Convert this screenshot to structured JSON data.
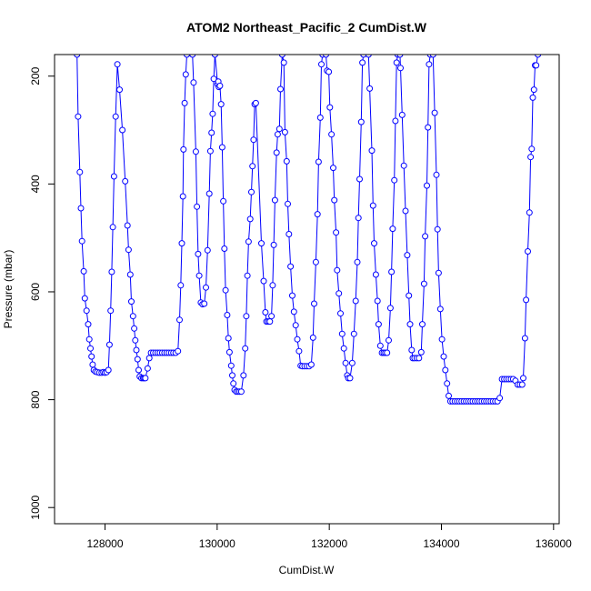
{
  "chart_data": {
    "type": "scatter",
    "title": "ATOM2 Northeast_Pacific_2 CumDist.W",
    "xlabel": "CumDist.W",
    "ylabel": "Pressure (mbar)",
    "xlim": [
      127100,
      136100
    ],
    "ylim": [
      1030,
      160
    ],
    "y_reversed": true,
    "grid": false,
    "legend": "none",
    "x_ticks": [
      128000,
      130000,
      132000,
      134000,
      136000
    ],
    "x_tick_labels": [
      "128000",
      "130000",
      "132000",
      "134000",
      "136000"
    ],
    "y_ticks": [
      200,
      400,
      600,
      800,
      1000
    ],
    "y_tick_labels": [
      "200",
      "400",
      "600",
      "800",
      "1000"
    ],
    "colors": {
      "series": "#0000ff",
      "axes": "#000000",
      "background": "#ffffff"
    },
    "series": [
      {
        "values": [
          [
            127500,
            160
          ],
          [
            127520,
            275
          ],
          [
            127550,
            378
          ],
          [
            127570,
            445
          ],
          [
            127590,
            506
          ],
          [
            127620,
            562
          ],
          [
            127640,
            612
          ],
          [
            127670,
            635
          ],
          [
            127700,
            660
          ],
          [
            127720,
            688
          ],
          [
            127740,
            705
          ],
          [
            127760,
            720
          ],
          [
            127780,
            735
          ],
          [
            127800,
            745
          ],
          [
            127830,
            748
          ],
          [
            127860,
            749
          ],
          [
            127900,
            750
          ],
          [
            127940,
            750
          ],
          [
            127970,
            749
          ],
          [
            128000,
            750
          ],
          [
            128030,
            749
          ],
          [
            128060,
            745
          ],
          [
            128080,
            698
          ],
          [
            128100,
            635
          ],
          [
            128120,
            563
          ],
          [
            128140,
            480
          ],
          [
            128160,
            386
          ],
          [
            128190,
            275
          ],
          [
            128220,
            178
          ],
          [
            128260,
            225
          ],
          [
            128310,
            300
          ],
          [
            128360,
            395
          ],
          [
            128400,
            477
          ],
          [
            128420,
            522
          ],
          [
            128450,
            568
          ],
          [
            128470,
            618
          ],
          [
            128500,
            645
          ],
          [
            128520,
            668
          ],
          [
            128540,
            690
          ],
          [
            128560,
            708
          ],
          [
            128580,
            725
          ],
          [
            128600,
            745
          ],
          [
            128620,
            757
          ],
          [
            128650,
            760
          ],
          [
            128680,
            760
          ],
          [
            128700,
            760
          ],
          [
            128720,
            760
          ],
          [
            128760,
            742
          ],
          [
            128790,
            723
          ],
          [
            128820,
            713
          ],
          [
            128860,
            713
          ],
          [
            128900,
            713
          ],
          [
            128940,
            713
          ],
          [
            128980,
            713
          ],
          [
            129020,
            713
          ],
          [
            129060,
            713
          ],
          [
            129100,
            713
          ],
          [
            129140,
            713
          ],
          [
            129180,
            713
          ],
          [
            129220,
            713
          ],
          [
            129260,
            713
          ],
          [
            129300,
            710
          ],
          [
            129330,
            652
          ],
          [
            129350,
            588
          ],
          [
            129370,
            510
          ],
          [
            129390,
            423
          ],
          [
            129400,
            336
          ],
          [
            129420,
            250
          ],
          [
            129440,
            197
          ],
          [
            129460,
            160
          ],
          [
            129560,
            160
          ],
          [
            129580,
            212
          ],
          [
            129620,
            340
          ],
          [
            129640,
            442
          ],
          [
            129660,
            530
          ],
          [
            129680,
            570
          ],
          [
            129710,
            620
          ],
          [
            129740,
            623
          ],
          [
            129770,
            622
          ],
          [
            129800,
            592
          ],
          [
            129830,
            523
          ],
          [
            129860,
            418
          ],
          [
            129880,
            339
          ],
          [
            129900,
            305
          ],
          [
            129920,
            270
          ],
          [
            129940,
            205
          ],
          [
            129960,
            160
          ],
          [
            130010,
            215
          ],
          [
            130020,
            210
          ],
          [
            130030,
            220
          ],
          [
            130050,
            218
          ],
          [
            130070,
            252
          ],
          [
            130090,
            332
          ],
          [
            130110,
            432
          ],
          [
            130130,
            520
          ],
          [
            130150,
            597
          ],
          [
            130180,
            643
          ],
          [
            130200,
            686
          ],
          [
            130220,
            712
          ],
          [
            130250,
            737
          ],
          [
            130270,
            755
          ],
          [
            130290,
            770
          ],
          [
            130310,
            782
          ],
          [
            130340,
            785
          ],
          [
            130370,
            785
          ],
          [
            130400,
            785
          ],
          [
            130430,
            785
          ],
          [
            130470,
            755
          ],
          [
            130500,
            705
          ],
          [
            130520,
            645
          ],
          [
            130540,
            570
          ],
          [
            130560,
            507
          ],
          [
            130590,
            465
          ],
          [
            130610,
            415
          ],
          [
            130630,
            367
          ],
          [
            130650,
            318
          ],
          [
            130670,
            252
          ],
          [
            130690,
            250
          ],
          [
            130790,
            510
          ],
          [
            130830,
            580
          ],
          [
            130860,
            638
          ],
          [
            130880,
            655
          ],
          [
            130910,
            655
          ],
          [
            130940,
            655
          ],
          [
            130970,
            645
          ],
          [
            130990,
            588
          ],
          [
            131010,
            513
          ],
          [
            131030,
            430
          ],
          [
            131060,
            342
          ],
          [
            131080,
            308
          ],
          [
            131110,
            298
          ],
          [
            131130,
            224
          ],
          [
            131160,
            160
          ],
          [
            131190,
            175
          ],
          [
            131210,
            304
          ],
          [
            131240,
            358
          ],
          [
            131260,
            437
          ],
          [
            131280,
            493
          ],
          [
            131310,
            553
          ],
          [
            131340,
            607
          ],
          [
            131370,
            637
          ],
          [
            131400,
            662
          ],
          [
            131430,
            688
          ],
          [
            131460,
            710
          ],
          [
            131490,
            737
          ],
          [
            131520,
            738
          ],
          [
            131560,
            738
          ],
          [
            131600,
            738
          ],
          [
            131640,
            738
          ],
          [
            131680,
            735
          ],
          [
            131710,
            685
          ],
          [
            131730,
            622
          ],
          [
            131760,
            545
          ],
          [
            131790,
            456
          ],
          [
            131810,
            359
          ],
          [
            131840,
            277
          ],
          [
            131860,
            178
          ],
          [
            131880,
            160
          ],
          [
            131940,
            160
          ],
          [
            131960,
            190
          ],
          [
            131990,
            192
          ],
          [
            132010,
            258
          ],
          [
            132040,
            308
          ],
          [
            132070,
            370
          ],
          [
            132090,
            430
          ],
          [
            132120,
            490
          ],
          [
            132140,
            560
          ],
          [
            132170,
            603
          ],
          [
            132200,
            640
          ],
          [
            132230,
            678
          ],
          [
            132260,
            705
          ],
          [
            132290,
            732
          ],
          [
            132320,
            755
          ],
          [
            132340,
            760
          ],
          [
            132370,
            760
          ],
          [
            132410,
            732
          ],
          [
            132440,
            678
          ],
          [
            132470,
            617
          ],
          [
            132500,
            545
          ],
          [
            132520,
            463
          ],
          [
            132540,
            391
          ],
          [
            132570,
            285
          ],
          [
            132590,
            175
          ],
          [
            132610,
            160
          ],
          [
            132700,
            160
          ],
          [
            132720,
            223
          ],
          [
            132760,
            338
          ],
          [
            132780,
            440
          ],
          [
            132800,
            510
          ],
          [
            132830,
            568
          ],
          [
            132860,
            617
          ],
          [
            132880,
            660
          ],
          [
            132910,
            700
          ],
          [
            132940,
            713
          ],
          [
            132970,
            713
          ],
          [
            133000,
            713
          ],
          [
            133030,
            713
          ],
          [
            133060,
            690
          ],
          [
            133090,
            630
          ],
          [
            133110,
            563
          ],
          [
            133130,
            483
          ],
          [
            133160,
            393
          ],
          [
            133180,
            283
          ],
          [
            133200,
            175
          ],
          [
            133220,
            160
          ],
          [
            133260,
            160
          ],
          [
            133270,
            185
          ],
          [
            133300,
            272
          ],
          [
            133330,
            366
          ],
          [
            133360,
            450
          ],
          [
            133390,
            532
          ],
          [
            133420,
            607
          ],
          [
            133440,
            660
          ],
          [
            133470,
            708
          ],
          [
            133490,
            723
          ],
          [
            133520,
            723
          ],
          [
            133560,
            723
          ],
          [
            133600,
            723
          ],
          [
            133640,
            712
          ],
          [
            133660,
            660
          ],
          [
            133690,
            585
          ],
          [
            133710,
            497
          ],
          [
            133740,
            403
          ],
          [
            133760,
            295
          ],
          [
            133780,
            178
          ],
          [
            133800,
            160
          ],
          [
            133850,
            160
          ],
          [
            133880,
            268
          ],
          [
            133910,
            383
          ],
          [
            133930,
            484
          ],
          [
            133950,
            565
          ],
          [
            133980,
            632
          ],
          [
            134010,
            688
          ],
          [
            134040,
            720
          ],
          [
            134070,
            745
          ],
          [
            134100,
            770
          ],
          [
            134130,
            793
          ],
          [
            134160,
            803
          ],
          [
            134200,
            803
          ],
          [
            134240,
            803
          ],
          [
            134280,
            803
          ],
          [
            134320,
            803
          ],
          [
            134360,
            803
          ],
          [
            134400,
            803
          ],
          [
            134440,
            803
          ],
          [
            134480,
            803
          ],
          [
            134520,
            803
          ],
          [
            134560,
            803
          ],
          [
            134600,
            803
          ],
          [
            134640,
            803
          ],
          [
            134680,
            803
          ],
          [
            134720,
            803
          ],
          [
            134760,
            803
          ],
          [
            134800,
            803
          ],
          [
            134840,
            803
          ],
          [
            134880,
            803
          ],
          [
            134920,
            803
          ],
          [
            134960,
            803
          ],
          [
            135000,
            803
          ],
          [
            135040,
            797
          ],
          [
            135080,
            762
          ],
          [
            135120,
            762
          ],
          [
            135160,
            762
          ],
          [
            135200,
            762
          ],
          [
            135240,
            762
          ],
          [
            135280,
            762
          ],
          [
            135320,
            765
          ],
          [
            135360,
            772
          ],
          [
            135400,
            772
          ],
          [
            135440,
            772
          ],
          [
            135460,
            760
          ],
          [
            135490,
            686
          ],
          [
            135510,
            615
          ],
          [
            135540,
            525
          ],
          [
            135570,
            453
          ],
          [
            135590,
            350
          ],
          [
            135610,
            335
          ],
          [
            135630,
            240
          ],
          [
            135650,
            225
          ],
          [
            135670,
            180
          ],
          [
            135690,
            180
          ],
          [
            135720,
            160
          ]
        ]
      }
    ]
  }
}
